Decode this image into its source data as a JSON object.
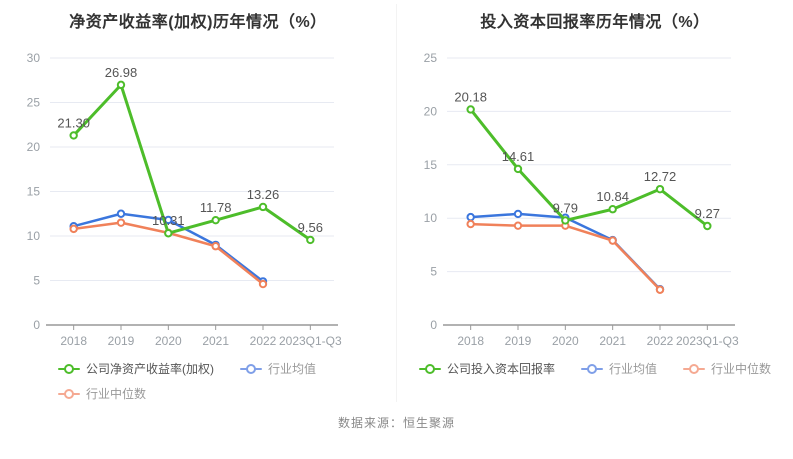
{
  "footer": {
    "source_note": "数据来源：恒生聚源"
  },
  "theme": {
    "background": "#ffffff",
    "title_color": "#333333",
    "grid_color": "#e7eaf2",
    "axis_color": "#666666",
    "tick_color": "#999999",
    "tick_label_color": "#9aa0a6",
    "data_label_color": "#555555",
    "divider_color": "#f3f3f3",
    "source_color": "#888888",
    "company_green": "#4dbd2a",
    "industry_blue": "#3b76dd",
    "industry_orange": "#f0815a"
  },
  "chart_data": [
    {
      "type": "line",
      "title": "净资产收益率(加权)历年情况（%）",
      "categories": [
        "2018",
        "2019",
        "2020",
        "2021",
        "2022",
        "2023Q1-Q3"
      ],
      "ylim": [
        0,
        30
      ],
      "ytick_step": 5,
      "grid": true,
      "legend_position": "bottom",
      "legend_layout": "left-indent",
      "series": [
        {
          "key": "company-roe",
          "name": "公司净资产收益率(加权)",
          "color": "#4dbd2a",
          "legend_color": "#4dbd2a",
          "legend_text_color": "#555555",
          "width": 3,
          "z": 3,
          "values": [
            21.3,
            26.98,
            10.31,
            11.78,
            13.26,
            9.56
          ],
          "labels": [
            "21.30",
            "26.98",
            "10.31",
            "11.78",
            "13.26",
            "9.56"
          ]
        },
        {
          "key": "industry-mean",
          "name": "行业均值",
          "color": "#3b76dd",
          "legend_color": "#7f9fe8",
          "legend_text_color": "#999999",
          "width": 2.5,
          "z": 1,
          "values": [
            11.1,
            12.5,
            11.8,
            9.0,
            4.9
          ]
        },
        {
          "key": "industry-median",
          "name": "行业中位数",
          "color": "#f0815a",
          "legend_color": "#f5a992",
          "legend_text_color": "#999999",
          "width": 2.5,
          "z": 2,
          "values": [
            10.8,
            11.5,
            10.35,
            8.85,
            4.6
          ]
        }
      ]
    },
    {
      "type": "line",
      "title": "投入资本回报率历年情况（%）",
      "categories": [
        "2018",
        "2019",
        "2020",
        "2021",
        "2022",
        "2023Q1-Q3"
      ],
      "ylim": [
        0,
        25
      ],
      "ytick_step": 5,
      "grid": true,
      "legend_position": "bottom",
      "legend_layout": "center",
      "series": [
        {
          "key": "company-roic",
          "name": "公司投入资本回报率",
          "color": "#4dbd2a",
          "legend_color": "#4dbd2a",
          "legend_text_color": "#555555",
          "width": 3,
          "z": 3,
          "values": [
            20.18,
            14.61,
            9.79,
            10.84,
            12.72,
            9.27
          ],
          "labels": [
            "20.18",
            "14.61",
            "9.79",
            "10.84",
            "12.72",
            "9.27"
          ]
        },
        {
          "key": "industry-mean",
          "name": "行业均值",
          "color": "#3b76dd",
          "legend_color": "#7f9fe8",
          "legend_text_color": "#999999",
          "width": 2.5,
          "z": 1,
          "values": [
            10.1,
            10.4,
            10.05,
            7.95,
            3.35
          ]
        },
        {
          "key": "industry-median",
          "name": "行业中位数",
          "color": "#f0815a",
          "legend_color": "#f5a992",
          "legend_text_color": "#999999",
          "width": 2.5,
          "z": 2,
          "values": [
            9.45,
            9.3,
            9.3,
            7.9,
            3.3
          ]
        }
      ]
    }
  ]
}
